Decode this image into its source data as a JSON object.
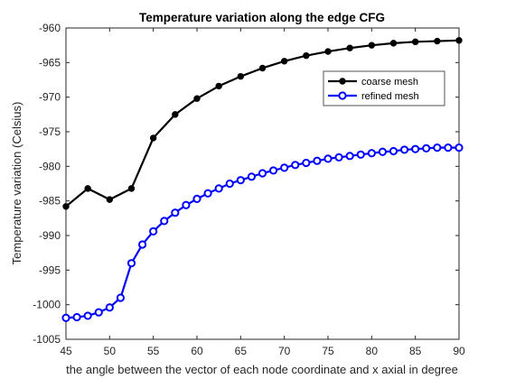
{
  "chart_data": {
    "type": "line",
    "title": "Temperature variation along the edge CFG",
    "xlabel": "the angle between the vector of each node coordinate and x axial in degree",
    "ylabel": "Temperature variation (Celsius)",
    "xlim": [
      45,
      90
    ],
    "ylim": [
      -1005,
      -960
    ],
    "xticks": [
      45,
      50,
      55,
      60,
      65,
      70,
      75,
      80,
      85,
      90
    ],
    "yticks": [
      -1005,
      -1000,
      -995,
      -990,
      -985,
      -980,
      -975,
      -970,
      -965,
      -960
    ],
    "grid": false,
    "legend_position": "top-right",
    "series": [
      {
        "name": "coarse mesh",
        "color": "#000000",
        "marker": "filled-circle",
        "x": [
          45,
          47.5,
          50,
          52.5,
          55,
          57.5,
          60,
          62.5,
          65,
          67.5,
          70,
          72.5,
          75,
          77.5,
          80,
          82.5,
          85,
          87.5,
          90
        ],
        "y": [
          -985.8,
          -983.2,
          -984.8,
          -983.2,
          -975.9,
          -972.5,
          -970.2,
          -968.4,
          -967.0,
          -965.8,
          -964.8,
          -964.0,
          -963.4,
          -962.9,
          -962.5,
          -962.2,
          -962.0,
          -961.9,
          -961.8
        ]
      },
      {
        "name": "refined mesh",
        "color": "#0000FF",
        "marker": "open-circle",
        "x": [
          45,
          46.25,
          47.5,
          48.75,
          50,
          51.25,
          52.5,
          53.75,
          55,
          56.25,
          57.5,
          58.75,
          60,
          61.25,
          62.5,
          63.75,
          65,
          66.25,
          67.5,
          68.75,
          70,
          71.25,
          72.5,
          73.75,
          75,
          76.25,
          77.5,
          78.75,
          80,
          81.25,
          82.5,
          83.75,
          85,
          86.25,
          87.5,
          88.75,
          90
        ],
        "y": [
          -1001.9,
          -1001.8,
          -1001.6,
          -1001.1,
          -1000.4,
          -999.0,
          -994.0,
          -991.3,
          -989.4,
          -987.9,
          -986.7,
          -985.6,
          -984.7,
          -983.9,
          -983.2,
          -982.5,
          -982.0,
          -981.5,
          -981.0,
          -980.6,
          -980.2,
          -979.8,
          -979.5,
          -979.2,
          -978.9,
          -978.7,
          -978.5,
          -978.3,
          -978.1,
          -977.9,
          -977.8,
          -977.6,
          -977.5,
          -977.4,
          -977.3,
          -977.3,
          -977.3
        ]
      }
    ]
  }
}
